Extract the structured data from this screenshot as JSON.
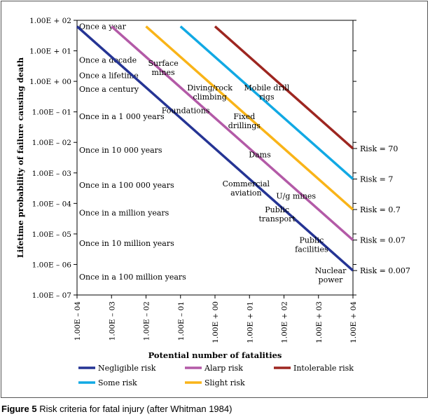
{
  "chart_data": {
    "type": "line",
    "title": "",
    "xlabel": "Potential number of fatalities",
    "ylabel": "Lifetime probability of failure causing death",
    "x_log_range": [
      -4,
      4
    ],
    "y_log_range": [
      -7,
      2
    ],
    "x_tick_labels": [
      "1.00E – 04",
      "1.00E – 03",
      "1.00E – 02",
      "1.00E – 01",
      "1.00E + 00",
      "1.00E + 01",
      "1.00E + 02",
      "1.00E + 03",
      "1.00E + 04"
    ],
    "y_tick_labels": [
      "1.00E + 02",
      "1.00E + 01",
      "1.00E + 00",
      "1.00E – 01",
      "1.00E – 02",
      "1.00E – 03",
      "1.00E – 04",
      "1.00E – 05",
      "1.00E – 06",
      "1.00E – 07"
    ],
    "frequency_labels": [
      {
        "text": "Once a year",
        "y": 1.8
      },
      {
        "text": "Once a decade",
        "y": 0.7
      },
      {
        "text": "Once a lifetime",
        "y": 0.2
      },
      {
        "text": "Once a century",
        "y": -0.25
      },
      {
        "text": "Once in a 1 000 years",
        "y": -1.15
      },
      {
        "text": "Once in 10 000 years",
        "y": -2.25
      },
      {
        "text": "Once in a 100 000 years",
        "y": -3.4
      },
      {
        "text": "Once in a million years",
        "y": -4.3
      },
      {
        "text": "Once in 10 million years",
        "y": -5.3
      },
      {
        "text": "Once in a 100 million years",
        "y": -6.4
      }
    ],
    "series": [
      {
        "name": "Negligible risk",
        "color": "#253494",
        "x": [
          -4,
          4
        ],
        "y": [
          1.8,
          -6.2
        ],
        "risk_label": "Risk = 0.007"
      },
      {
        "name": "Alarp risk",
        "color": "#b35aa7",
        "x": [
          -3,
          4
        ],
        "y": [
          1.8,
          -5.2
        ],
        "risk_label": "Risk = 0.07"
      },
      {
        "name": "Slight risk",
        "color": "#f9b418",
        "x": [
          -2,
          4
        ],
        "y": [
          1.8,
          -4.2
        ],
        "risk_label": "Risk = 0.7"
      },
      {
        "name": "Some risk",
        "color": "#11a9e4",
        "x": [
          -1,
          4
        ],
        "y": [
          1.8,
          -3.2
        ],
        "risk_label": "Risk = 7"
      },
      {
        "name": "Intolerable risk",
        "color": "#9d2620",
        "x": [
          0,
          4
        ],
        "y": [
          1.8,
          -2.2
        ],
        "risk_label": "Risk = 70"
      }
    ],
    "annotations": [
      {
        "text": "Surface\nmines",
        "x": -1.5,
        "y": 0.45
      },
      {
        "text": "Diving/rock\nclimbing",
        "x": -0.15,
        "y": -0.35
      },
      {
        "text": "Mobile drill\nrigs",
        "x": 1.5,
        "y": -0.35
      },
      {
        "text": "Foundations",
        "x": -0.85,
        "y": -0.95
      },
      {
        "text": "Fixed\ndrillings",
        "x": 0.85,
        "y": -1.3
      },
      {
        "text": "Dams",
        "x": 1.3,
        "y": -2.4
      },
      {
        "text": "Commercial\naviation",
        "x": 0.9,
        "y": -3.5
      },
      {
        "text": "U/g mines",
        "x": 2.35,
        "y": -3.75
      },
      {
        "text": "Public\ntransport",
        "x": 1.8,
        "y": -4.35
      },
      {
        "text": "Public\nfacilities",
        "x": 2.8,
        "y": -5.35
      },
      {
        "text": "Nuclear\npower",
        "x": 3.35,
        "y": -6.35
      }
    ],
    "legend_position": "bottom"
  },
  "caption": {
    "label": "Figure 5",
    "text": " Risk criteria for fatal injury (after Whitman 1984)"
  }
}
